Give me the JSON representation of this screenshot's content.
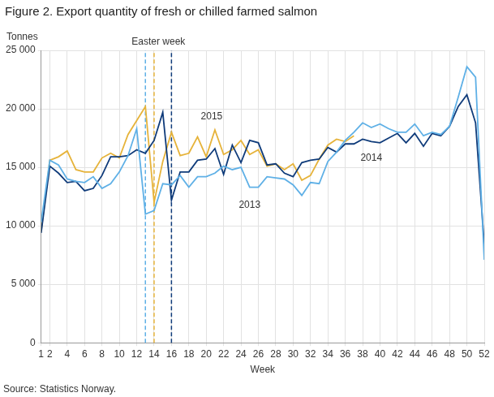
{
  "chart_data": {
    "type": "line",
    "title": "Figure 2. Export quantity of fresh or chilled farmed salmon",
    "ylabel": "Tonnes",
    "xlabel": "Week",
    "source": "Source: Statistics Norway.",
    "annotations": [
      "Easter week"
    ],
    "x": [
      1,
      2,
      3,
      4,
      5,
      6,
      7,
      8,
      9,
      10,
      11,
      12,
      13,
      14,
      15,
      16,
      17,
      18,
      19,
      20,
      21,
      22,
      23,
      24,
      25,
      26,
      27,
      28,
      29,
      30,
      31,
      32,
      33,
      34,
      35,
      36,
      37,
      38,
      39,
      40,
      41,
      42,
      43,
      44,
      45,
      46,
      47,
      48,
      49,
      50,
      51,
      52
    ],
    "xlim": [
      1,
      52
    ],
    "xticks": [
      1,
      2,
      4,
      6,
      8,
      10,
      12,
      14,
      16,
      18,
      20,
      22,
      24,
      26,
      28,
      30,
      32,
      34,
      36,
      38,
      40,
      42,
      44,
      46,
      48,
      50,
      52
    ],
    "ylim": [
      0,
      25000
    ],
    "yticks": [
      0,
      {
        "value": 5000,
        "label": "5 000"
      },
      {
        "value": 10000,
        "label": "10 000"
      },
      {
        "value": 15000,
        "label": "15 000"
      },
      {
        "value": 20000,
        "label": "20 000"
      },
      {
        "value": 25000,
        "label": "25 000"
      }
    ],
    "grid": true,
    "legend": false,
    "series": [
      {
        "name": "2013",
        "color": "#5fb0e6",
        "easter_week": 13,
        "values": [
          10300,
          15600,
          15200,
          14000,
          13800,
          13700,
          14200,
          13200,
          13600,
          14600,
          16000,
          18300,
          11000,
          11300,
          13600,
          13500,
          14300,
          13300,
          14200,
          14200,
          14500,
          15100,
          14800,
          15000,
          13300,
          13300,
          14200,
          14100,
          14000,
          13500,
          12600,
          13700,
          13600,
          15500,
          16300,
          17300,
          18000,
          18800,
          18400,
          18700,
          18300,
          18000,
          18000,
          18700,
          17700,
          18000,
          17800,
          18500,
          21000,
          23600,
          22700,
          7100
        ]
      },
      {
        "name": "2014",
        "color": "#0f3b7a",
        "easter_week": 16,
        "values": [
          9400,
          15100,
          14500,
          13700,
          13800,
          13000,
          13200,
          14300,
          15900,
          15900,
          16000,
          16500,
          16200,
          17300,
          19700,
          12200,
          14600,
          14600,
          15600,
          15700,
          16600,
          14400,
          16900,
          15400,
          17300,
          17100,
          15200,
          15300,
          14500,
          14200,
          15400,
          15600,
          15700,
          16700,
          16300,
          17000,
          17000,
          17400,
          17200,
          17100,
          17500,
          17900,
          17100,
          17900,
          16800,
          17900,
          17700,
          18500,
          20200,
          21200,
          18800,
          8400
        ]
      },
      {
        "name": "2015",
        "color": "#e6b33a",
        "easter_week": 14,
        "values": [
          9500,
          15600,
          15900,
          16400,
          14800,
          14600,
          14600,
          15800,
          16200,
          15800,
          17800,
          19000,
          20200,
          12000,
          15500,
          18000,
          16000,
          16200,
          17600,
          15900,
          18200,
          16100,
          16500,
          17300,
          16100,
          16500,
          15100,
          15300,
          14800,
          15300,
          13900,
          14300,
          15700,
          16900,
          17400,
          17200,
          17700,
          null,
          null,
          null,
          null,
          null,
          null,
          null,
          null,
          null,
          null,
          null,
          null,
          null,
          null,
          null
        ]
      }
    ]
  }
}
